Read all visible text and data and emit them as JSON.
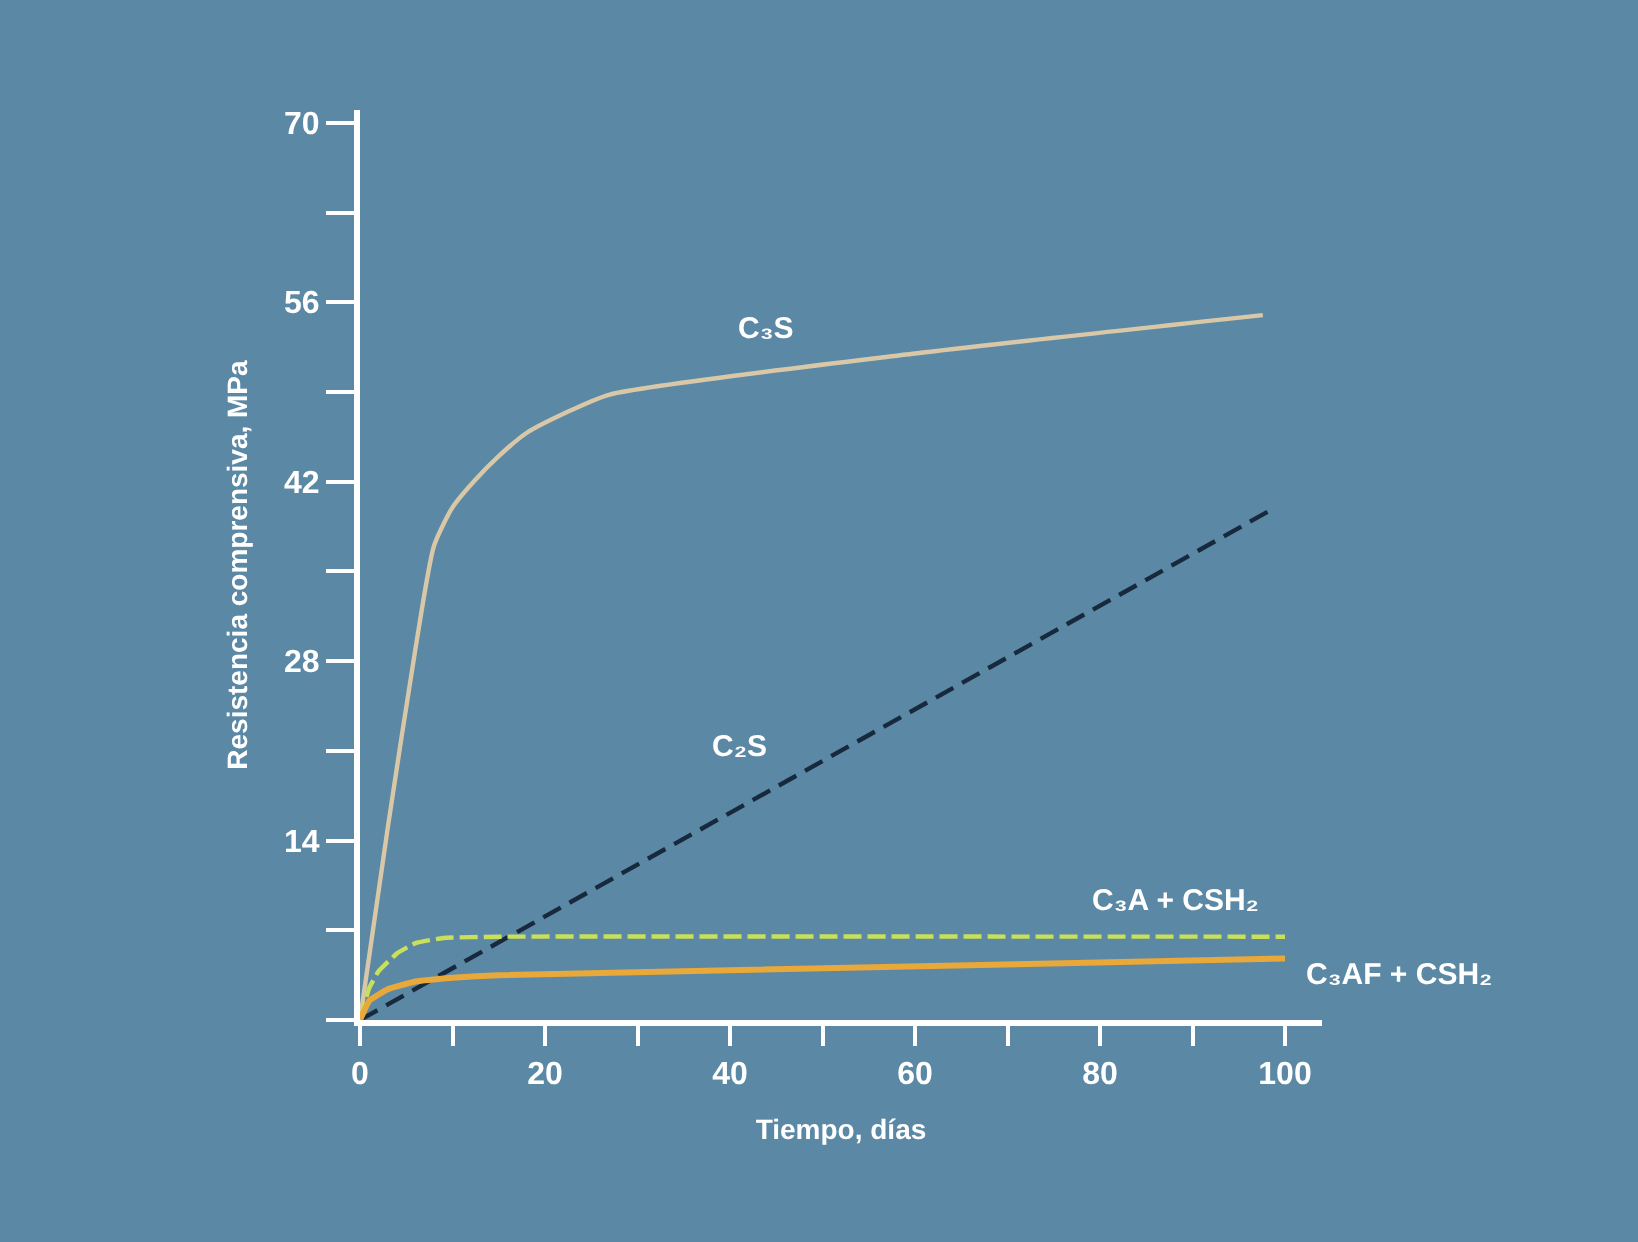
{
  "chart_data": {
    "type": "line",
    "xlabel": "Tiempo, días",
    "ylabel": "Resistencia comprensiva, MPa",
    "xlim": [
      0,
      104
    ],
    "ylim": [
      0,
      71
    ],
    "xticks": [
      0,
      {
        "value": 10,
        "label": null
      },
      20,
      {
        "value": 30,
        "label": null
      },
      40,
      {
        "value": 50,
        "label": null
      },
      60,
      {
        "value": 70,
        "label": null
      },
      80,
      {
        "value": 90,
        "label": null
      },
      100
    ],
    "yticks": [
      {
        "value": 0,
        "label": null
      },
      {
        "value": 7,
        "label": null
      },
      14,
      {
        "value": 21,
        "label": null
      },
      28,
      {
        "value": 35,
        "label": null
      },
      42,
      {
        "value": 49,
        "label": null
      },
      56,
      {
        "value": 63,
        "label": null
      },
      70
    ],
    "grid": false,
    "legend": false,
    "marker": "none",
    "series": [
      {
        "name": "C₃S",
        "color": "#d8c8a8",
        "line_style": "solid",
        "x": [
          0,
          3,
          6,
          8,
          10,
          12.4,
          15,
          18,
          22,
          27,
          60,
          97.6
        ],
        "values": [
          0,
          15,
          29,
          37,
          40,
          42.1,
          44,
          45.8,
          47.3,
          48.8,
          52,
          55
        ]
      },
      {
        "name": "C₂S",
        "color": "#17293d",
        "line_style": "dashed",
        "x": [
          0,
          98.5
        ],
        "values": [
          0,
          39.8
        ]
      },
      {
        "name": "C₃A + CSH₂",
        "color": "#c8e05a",
        "line_style": "dashed",
        "x": [
          0,
          1,
          2,
          4,
          6,
          9,
          15,
          100
        ],
        "values": [
          0,
          2.5,
          3.8,
          5.2,
          6,
          6.4,
          6.5,
          6.5
        ]
      },
      {
        "name": "C₃AF + CSH₂",
        "color": "#e8a83a",
        "line_style": "solid",
        "x": [
          0,
          1,
          3,
          6,
          10,
          15,
          100
        ],
        "values": [
          0,
          1.5,
          2.4,
          3,
          3.3,
          3.5,
          4.8
        ]
      }
    ]
  }
}
